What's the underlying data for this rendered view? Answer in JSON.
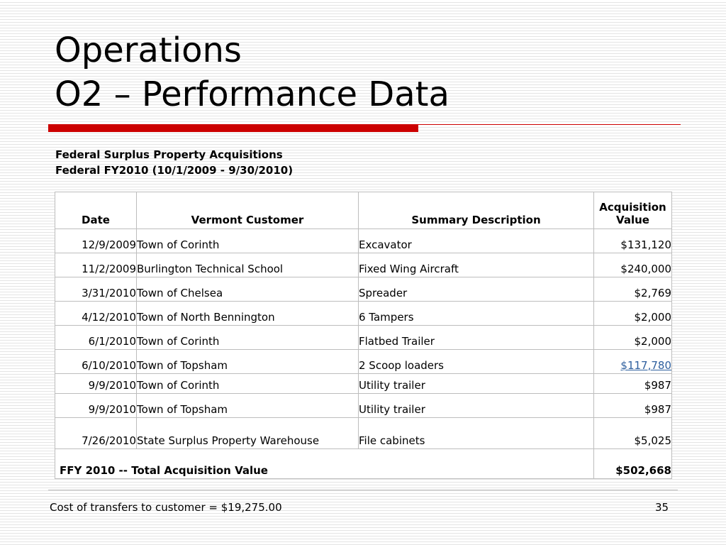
{
  "title": {
    "line1": "Operations",
    "line2": "O2 – Performance Data"
  },
  "subtitle": {
    "line1": "Federal Surplus Property Acquisitions",
    "line2": "Federal FY2010 (10/1/2009 - 9/30/2010)"
  },
  "table": {
    "headers": {
      "date": "Date",
      "customer": "Vermont Customer",
      "description": "Summary Description",
      "value_line1": "Acquisition",
      "value_line2": "Value"
    },
    "rows": [
      {
        "date": "12/9/2009",
        "customer": "Town of Corinth",
        "description": "Excavator",
        "value": "$131,120"
      },
      {
        "date": "11/2/2009",
        "customer": "Burlington Technical School",
        "description": "Fixed Wing Aircraft",
        "value": "$240,000"
      },
      {
        "date": "3/31/2010",
        "customer": "Town of Chelsea",
        "description": "Spreader",
        "value": "$2,769"
      },
      {
        "date": "4/12/2010",
        "customer": "Town of North Bennington",
        "description": "6 Tampers",
        "value": "$2,000"
      },
      {
        "date": "6/1/2010",
        "customer": "Town of Corinth",
        "description": "Flatbed Trailer",
        "value": "$2,000"
      },
      {
        "date": "6/10/2010",
        "customer": "Town of Topsham",
        "description": "2 Scoop loaders",
        "value": "$117,780"
      },
      {
        "date": "9/9/2010",
        "customer": "Town of Corinth",
        "description": "Utility trailer",
        "value": "$987"
      },
      {
        "date": "9/9/2010",
        "customer": "Town of Topsham",
        "description": "Utility trailer",
        "value": "$987"
      },
      {
        "date": "7/26/2010",
        "customer": "State Surplus Property Warehouse",
        "description": "File cabinets",
        "value": "$5,025"
      }
    ],
    "total": {
      "label": "FFY 2010 -- Total Acquisition Value",
      "value": "$502,668"
    }
  },
  "footer": {
    "note": "Cost of transfers to customer = $19,275.00",
    "page_number": "35"
  },
  "colors": {
    "accent_bar": "#cc0000",
    "link": "#2e5f9e"
  }
}
